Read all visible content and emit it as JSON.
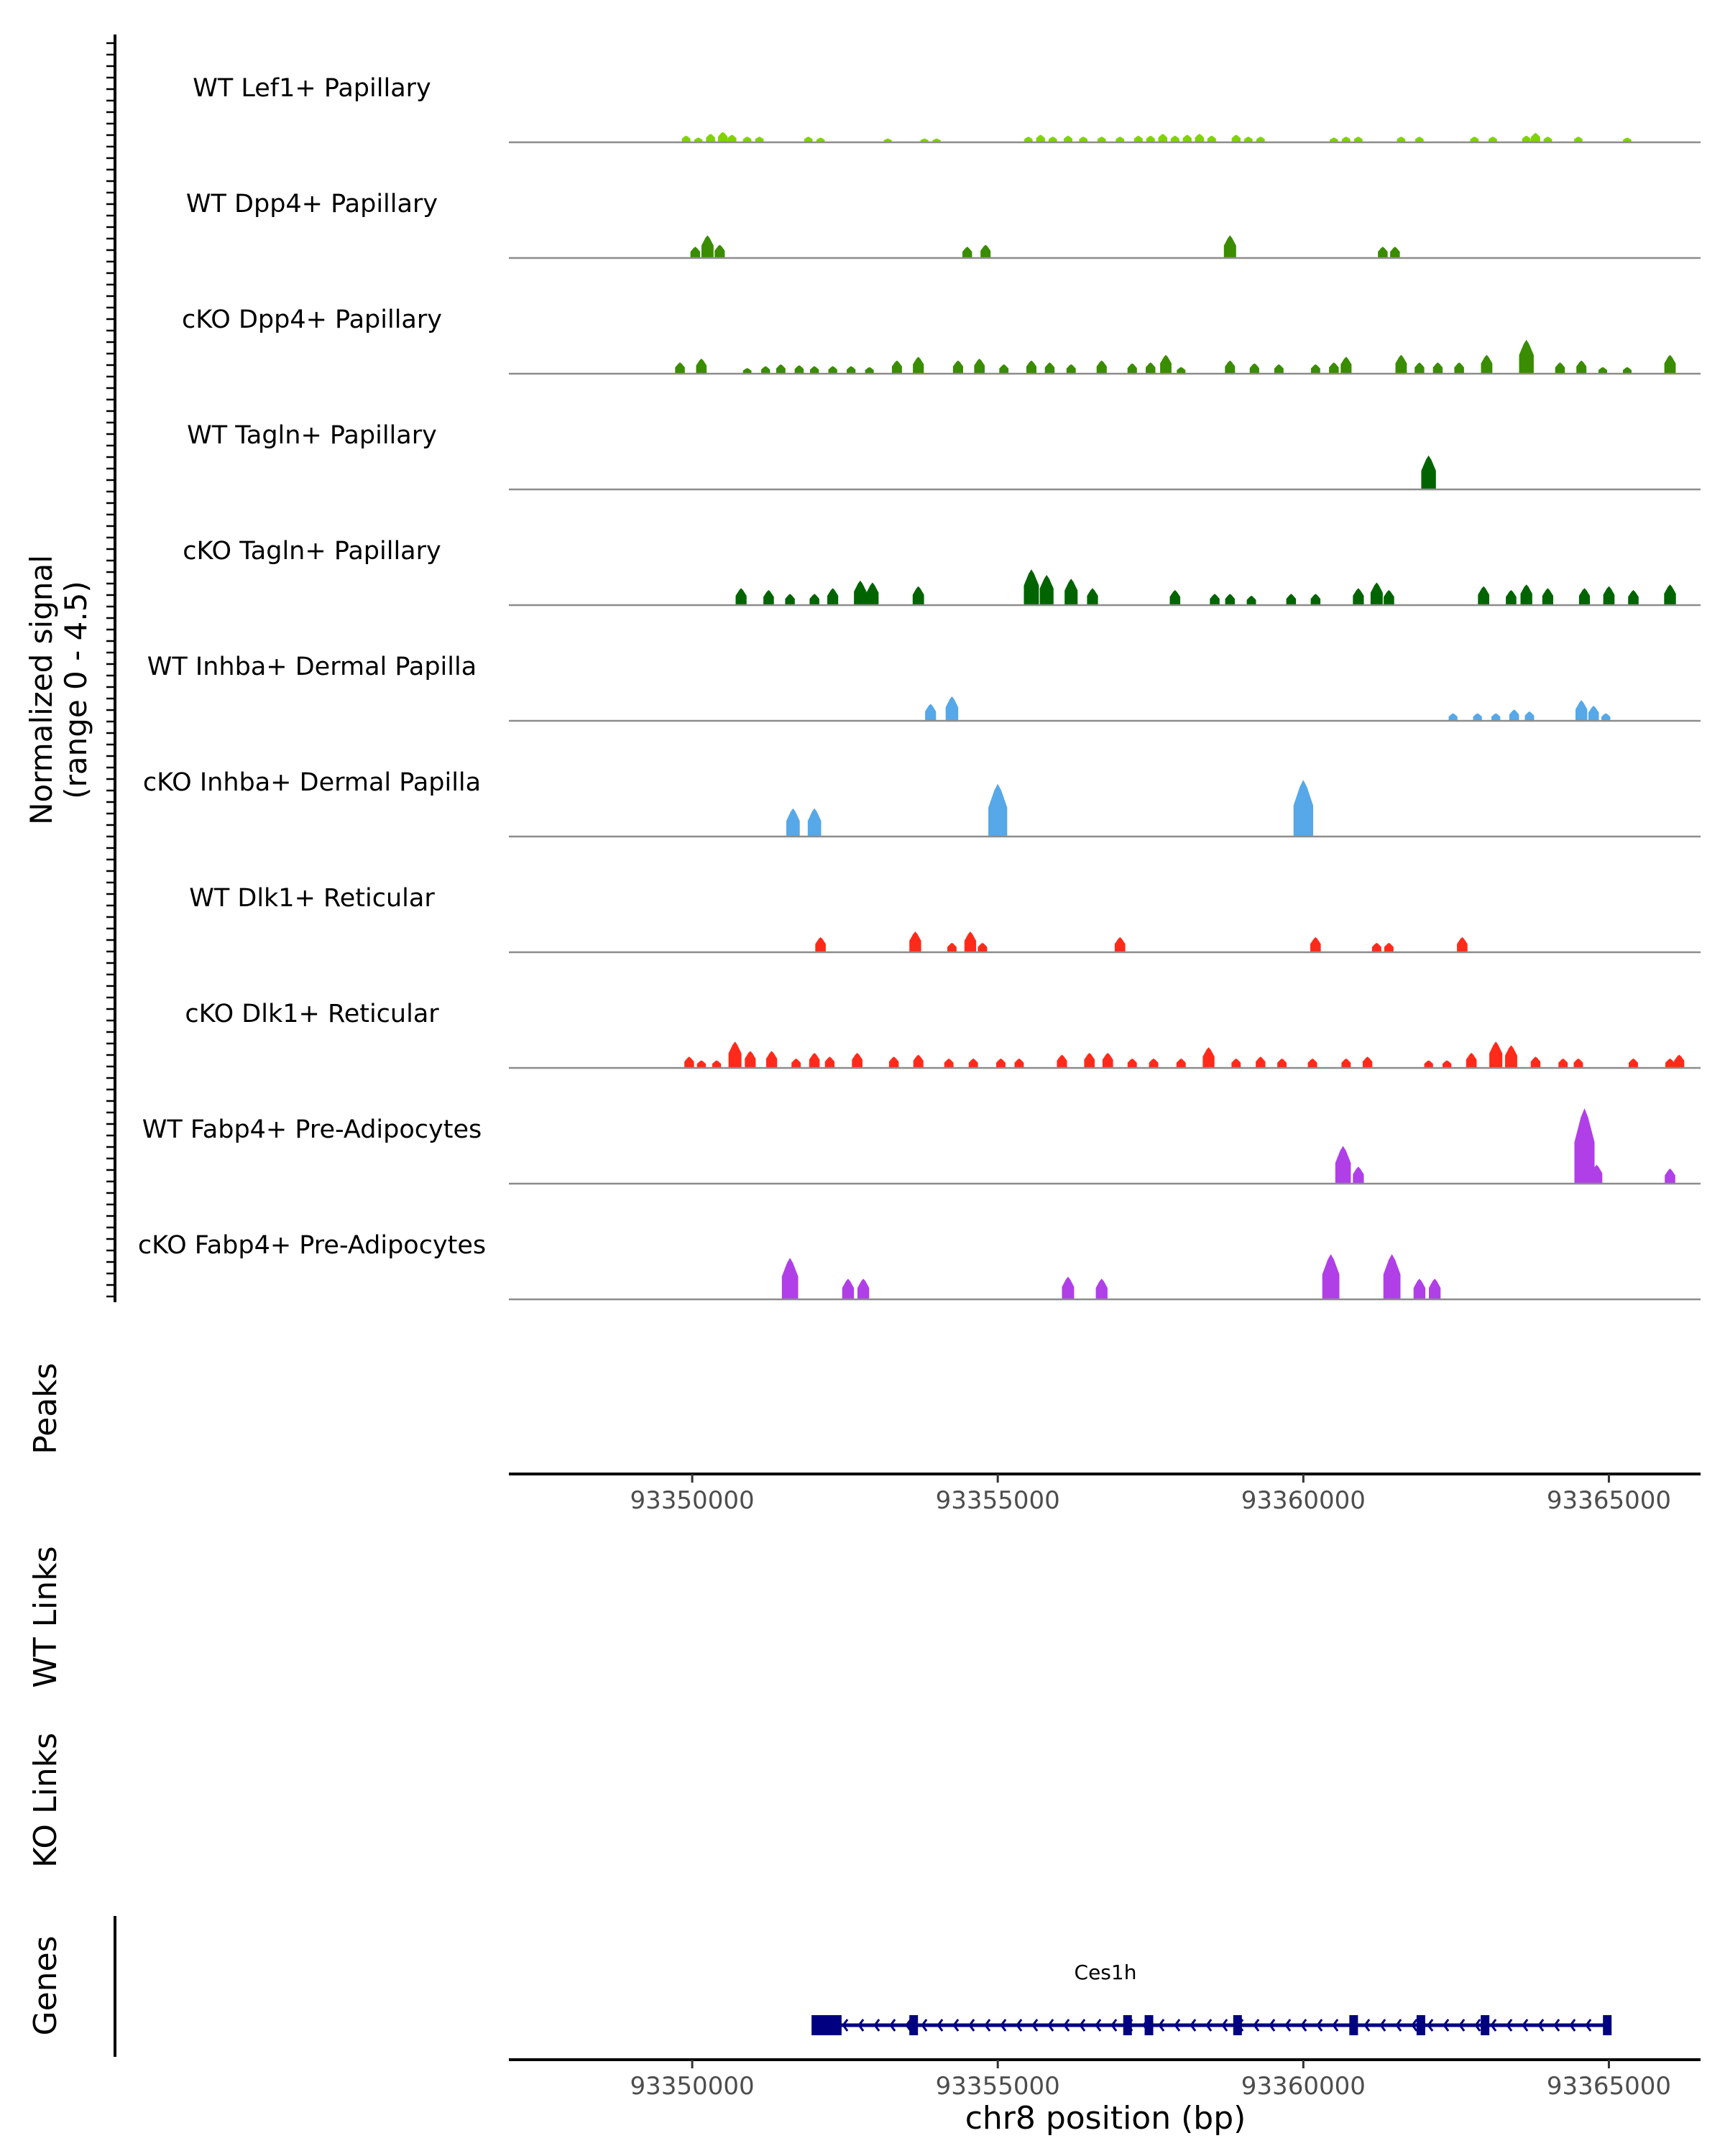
{
  "chart_data": {
    "type": "area",
    "title": "",
    "xlabel": "chr8 position (bp)",
    "ylabel_line1": "Normalized signal",
    "ylabel_line2": "(range 0 - 4.5)",
    "xlim": [
      93347000,
      93366500
    ],
    "x_ticks": [
      "93350000",
      "93355000",
      "93360000",
      "93365000"
    ],
    "x_tick_values": [
      93350000,
      93355000,
      93360000,
      93365000
    ],
    "ylim": [
      0,
      4.5
    ],
    "tracks": [
      {
        "name": "WT Lef1+ Papillary",
        "color": "#7FD400",
        "peaks": [
          [
            93349900,
            0.35
          ],
          [
            93350100,
            0.25
          ],
          [
            93350300,
            0.45
          ],
          [
            93350500,
            0.55
          ],
          [
            93350650,
            0.4
          ],
          [
            93350900,
            0.3
          ],
          [
            93351100,
            0.3
          ],
          [
            93351900,
            0.3
          ],
          [
            93352100,
            0.25
          ],
          [
            93353200,
            0.2
          ],
          [
            93353800,
            0.2
          ],
          [
            93354000,
            0.2
          ],
          [
            93355500,
            0.3
          ],
          [
            93355700,
            0.4
          ],
          [
            93355900,
            0.3
          ],
          [
            93356150,
            0.35
          ],
          [
            93356400,
            0.3
          ],
          [
            93356700,
            0.3
          ],
          [
            93357000,
            0.3
          ],
          [
            93357300,
            0.35
          ],
          [
            93357500,
            0.35
          ],
          [
            93357700,
            0.45
          ],
          [
            93357900,
            0.35
          ],
          [
            93358100,
            0.4
          ],
          [
            93358300,
            0.45
          ],
          [
            93358500,
            0.35
          ],
          [
            93358900,
            0.4
          ],
          [
            93359100,
            0.3
          ],
          [
            93359300,
            0.3
          ],
          [
            93360500,
            0.25
          ],
          [
            93360700,
            0.3
          ],
          [
            93360900,
            0.3
          ],
          [
            93361600,
            0.3
          ],
          [
            93361900,
            0.3
          ],
          [
            93362800,
            0.3
          ],
          [
            93363100,
            0.3
          ],
          [
            93363650,
            0.35
          ],
          [
            93363800,
            0.5
          ],
          [
            93364000,
            0.3
          ],
          [
            93364500,
            0.3
          ],
          [
            93365300,
            0.25
          ]
        ]
      },
      {
        "name": "WT Dpp4+ Papillary",
        "color": "#3A8C00",
        "peaks": [
          [
            93350050,
            0.6
          ],
          [
            93350250,
            1.2
          ],
          [
            93350450,
            0.7
          ],
          [
            93354500,
            0.6
          ],
          [
            93354800,
            0.7
          ],
          [
            93358800,
            1.2
          ],
          [
            93361300,
            0.6
          ],
          [
            93361500,
            0.6
          ]
        ]
      },
      {
        "name": "cKO Dpp4+ Papillary",
        "color": "#3A8C00",
        "peaks": [
          [
            93349800,
            0.6
          ],
          [
            93350150,
            0.8
          ],
          [
            93350900,
            0.3
          ],
          [
            93351200,
            0.4
          ],
          [
            93351450,
            0.5
          ],
          [
            93351750,
            0.45
          ],
          [
            93352000,
            0.4
          ],
          [
            93352300,
            0.4
          ],
          [
            93352600,
            0.4
          ],
          [
            93352900,
            0.35
          ],
          [
            93353350,
            0.7
          ],
          [
            93353700,
            0.9
          ],
          [
            93354350,
            0.7
          ],
          [
            93354700,
            0.8
          ],
          [
            93355100,
            0.5
          ],
          [
            93355550,
            0.7
          ],
          [
            93355850,
            0.6
          ],
          [
            93356200,
            0.5
          ],
          [
            93356700,
            0.7
          ],
          [
            93357200,
            0.55
          ],
          [
            93357500,
            0.6
          ],
          [
            93357750,
            1.0
          ],
          [
            93358000,
            0.35
          ],
          [
            93358800,
            0.7
          ],
          [
            93359200,
            0.55
          ],
          [
            93359600,
            0.5
          ],
          [
            93360200,
            0.5
          ],
          [
            93360500,
            0.6
          ],
          [
            93360700,
            0.9
          ],
          [
            93361600,
            1.0
          ],
          [
            93361900,
            0.6
          ],
          [
            93362200,
            0.6
          ],
          [
            93362550,
            0.6
          ],
          [
            93363000,
            1.0
          ],
          [
            93363650,
            1.8
          ],
          [
            93364200,
            0.6
          ],
          [
            93364550,
            0.7
          ],
          [
            93364900,
            0.35
          ],
          [
            93365300,
            0.35
          ],
          [
            93366000,
            1.0
          ]
        ]
      },
      {
        "name": "WT Tagln+ Papillary",
        "color": "#006400",
        "peaks": [
          [
            93362050,
            1.8
          ]
        ]
      },
      {
        "name": "cKO Tagln+ Papillary",
        "color": "#006400",
        "peaks": [
          [
            93350800,
            0.9
          ],
          [
            93351250,
            0.8
          ],
          [
            93351600,
            0.6
          ],
          [
            93352000,
            0.6
          ],
          [
            93352300,
            0.9
          ],
          [
            93352750,
            1.3
          ],
          [
            93352950,
            1.2
          ],
          [
            93353700,
            1.0
          ],
          [
            93355550,
            1.9
          ],
          [
            93355800,
            1.6
          ],
          [
            93356200,
            1.4
          ],
          [
            93356550,
            0.9
          ],
          [
            93357900,
            0.8
          ],
          [
            93358550,
            0.6
          ],
          [
            93358800,
            0.6
          ],
          [
            93359150,
            0.5
          ],
          [
            93359800,
            0.6
          ],
          [
            93360200,
            0.6
          ],
          [
            93360900,
            0.9
          ],
          [
            93361200,
            1.2
          ],
          [
            93361400,
            0.8
          ],
          [
            93362950,
            1.0
          ],
          [
            93363400,
            0.8
          ],
          [
            93363650,
            1.1
          ],
          [
            93364000,
            0.9
          ],
          [
            93364600,
            0.9
          ],
          [
            93365000,
            1.0
          ],
          [
            93365400,
            0.8
          ],
          [
            93366000,
            1.1
          ]
        ]
      },
      {
        "name": "WT Inhba+ Dermal Papilla",
        "color": "#56A8E8",
        "peaks": [
          [
            93353900,
            0.9
          ],
          [
            93354250,
            1.3
          ],
          [
            93362450,
            0.4
          ],
          [
            93362850,
            0.4
          ],
          [
            93363150,
            0.4
          ],
          [
            93363450,
            0.6
          ],
          [
            93363700,
            0.5
          ],
          [
            93364550,
            1.1
          ],
          [
            93364750,
            0.8
          ],
          [
            93364950,
            0.4
          ]
        ]
      },
      {
        "name": "cKO Inhba+ Dermal Papilla",
        "color": "#56A8E8",
        "peaks": [
          [
            93351650,
            1.5
          ],
          [
            93352000,
            1.5
          ],
          [
            93355000,
            2.8
          ],
          [
            93360000,
            3.0
          ]
        ]
      },
      {
        "name": "WT Dlk1+ Reticular",
        "color": "#FF2A1A",
        "peaks": [
          [
            93352100,
            0.8
          ],
          [
            93353650,
            1.1
          ],
          [
            93354250,
            0.5
          ],
          [
            93354550,
            1.1
          ],
          [
            93354750,
            0.5
          ],
          [
            93357000,
            0.8
          ],
          [
            93360200,
            0.8
          ],
          [
            93361200,
            0.5
          ],
          [
            93361400,
            0.5
          ],
          [
            93362600,
            0.8
          ]
        ]
      },
      {
        "name": "cKO Dlk1+ Reticular",
        "color": "#FF2A1A",
        "peaks": [
          [
            93349950,
            0.6
          ],
          [
            93350150,
            0.4
          ],
          [
            93350400,
            0.4
          ],
          [
            93350700,
            1.4
          ],
          [
            93350950,
            0.9
          ],
          [
            93351300,
            0.9
          ],
          [
            93351700,
            0.5
          ],
          [
            93352000,
            0.8
          ],
          [
            93352250,
            0.6
          ],
          [
            93352700,
            0.8
          ],
          [
            93353300,
            0.6
          ],
          [
            93353700,
            0.7
          ],
          [
            93354200,
            0.5
          ],
          [
            93354600,
            0.5
          ],
          [
            93355050,
            0.5
          ],
          [
            93355350,
            0.5
          ],
          [
            93356050,
            0.7
          ],
          [
            93356500,
            0.8
          ],
          [
            93356800,
            0.8
          ],
          [
            93357200,
            0.5
          ],
          [
            93357550,
            0.5
          ],
          [
            93358000,
            0.5
          ],
          [
            93358450,
            1.1
          ],
          [
            93358900,
            0.5
          ],
          [
            93359300,
            0.6
          ],
          [
            93359650,
            0.5
          ],
          [
            93360150,
            0.5
          ],
          [
            93360700,
            0.5
          ],
          [
            93361050,
            0.6
          ],
          [
            93362050,
            0.4
          ],
          [
            93362350,
            0.4
          ],
          [
            93362750,
            0.8
          ],
          [
            93363150,
            1.4
          ],
          [
            93363400,
            1.2
          ],
          [
            93363800,
            0.6
          ],
          [
            93364250,
            0.5
          ],
          [
            93364500,
            0.5
          ],
          [
            93365400,
            0.5
          ],
          [
            93366000,
            0.5
          ],
          [
            93366150,
            0.7
          ]
        ]
      },
      {
        "name": "WT Fabp4+ Pre-Adipocytes",
        "color": "#B03FE8",
        "peaks": [
          [
            93360650,
            2.0
          ],
          [
            93360900,
            0.9
          ],
          [
            93364600,
            4.0
          ],
          [
            93364800,
            1.0
          ],
          [
            93366000,
            0.8
          ]
        ]
      },
      {
        "name": "cKO Fabp4+ Pre-Adipocytes",
        "color": "#B03FE8",
        "peaks": [
          [
            93351600,
            2.2
          ],
          [
            93352550,
            1.1
          ],
          [
            93352800,
            1.1
          ],
          [
            93356150,
            1.2
          ],
          [
            93356700,
            1.1
          ],
          [
            93360450,
            2.4
          ],
          [
            93361450,
            2.4
          ],
          [
            93361900,
            1.1
          ],
          [
            93362150,
            1.1
          ]
        ]
      }
    ],
    "panels": [
      "Peaks",
      "WT Links",
      "KO Links",
      "Genes"
    ],
    "gene": {
      "name": "Ces1h",
      "start": 93352000,
      "end": 93365000,
      "strand": "-",
      "exons": [
        93352000,
        93352350,
        93353600,
        93357100,
        93357450,
        93358900,
        93360800,
        93361900,
        93362950,
        93364950
      ]
    }
  }
}
